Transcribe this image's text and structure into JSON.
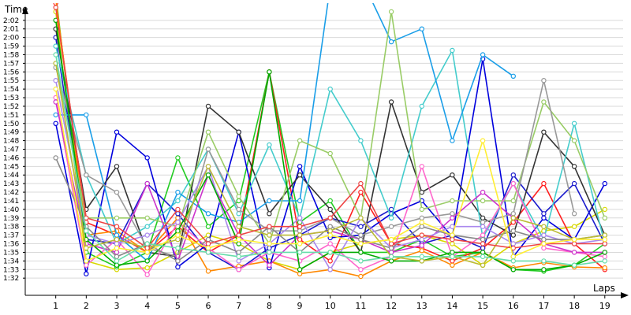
{
  "chart_data": {
    "type": "line",
    "xlabel": "Laps",
    "ylabel": "Time",
    "x": [
      1,
      2,
      3,
      4,
      5,
      6,
      7,
      8,
      9,
      10,
      11,
      12,
      13,
      14,
      15,
      16,
      17,
      18,
      19
    ],
    "x_tick_labels": [
      "1",
      "2",
      "3",
      "4",
      "5",
      "6",
      "7",
      "8",
      "9",
      "10",
      "11",
      "12",
      "13",
      "14",
      "15",
      "16",
      "17",
      "18",
      "19"
    ],
    "y_ticks": [
      92,
      93,
      94,
      95,
      96,
      97,
      98,
      99,
      100,
      101,
      102,
      103,
      104,
      105,
      106,
      107,
      108,
      109,
      110,
      111,
      112,
      113,
      114,
      115,
      116,
      117,
      118,
      119,
      120,
      121,
      122
    ],
    "y_tick_labels": [
      "1:32",
      "1:33",
      "1:34",
      "1:35",
      "1:36",
      "1:37",
      "1:38",
      "1:39",
      "1:40",
      "1:41",
      "1:42",
      "1:43",
      "1:44",
      "1:45",
      "1:46",
      "1:47",
      "1:48",
      "1:49",
      "1:50",
      "1:51",
      "1:52",
      "1:53",
      "1:54",
      "1:55",
      "1:56",
      "1:57",
      "1:58",
      "1:59",
      "2:00",
      "2:01",
      "2:02"
    ],
    "ylim": [
      90,
      124
    ],
    "xlim": [
      0,
      19.6
    ],
    "y_unit": "seconds",
    "grid": "horizontal",
    "series": [
      {
        "color": "#d8d800",
        "values": [
          123,
          94,
          93,
          93.2,
          95,
          97,
          96,
          94,
          93,
          95,
          96,
          96.5,
          97,
          96,
          93.5,
          96,
          97.5,
          98,
          100
        ]
      },
      {
        "color": "#22cc22",
        "values": [
          125,
          95,
          93.3,
          95,
          106,
          98,
          101,
          116,
          98.5,
          101,
          95,
          95,
          96.5,
          94.5,
          95,
          93,
          92.8,
          93.5,
          96
        ]
      },
      {
        "color": "#ff2020",
        "values": [
          124,
          98.5,
          97,
          95,
          98,
          95,
          97,
          116,
          96.5,
          94,
          102,
          96,
          95.5,
          94,
          95.5,
          98.5,
          103,
          96,
          93
        ]
      },
      {
        "color": "#ff8800",
        "values": [
          124.5,
          97,
          97.5,
          95,
          99,
          92.8,
          93.4,
          94,
          92.5,
          93,
          92.2,
          94,
          95.2,
          93.5,
          95,
          93.2,
          93.8,
          93.3,
          93.2
        ]
      },
      {
        "color": "#0000dd",
        "values": [
          110,
          92.5,
          109,
          106,
          93.3,
          96,
          109,
          93.2,
          105,
          96.7,
          97,
          99.5,
          101,
          96.8,
          117.5,
          94.5,
          99,
          96.5,
          103
        ]
      },
      {
        "color": "#1a1acc",
        "values": [
          120,
          96.5,
          96,
          103,
          99.5,
          95,
          93,
          95.5,
          97,
          99,
          98,
          100,
          96,
          97,
          95.5,
          104,
          99.5,
          103,
          96
        ]
      },
      {
        "color": "#333333",
        "values": [
          121,
          100,
          105,
          95,
          94.5,
          112,
          109,
          99.5,
          104,
          100,
          95,
          112.5,
          102,
          104,
          99,
          97,
          109,
          105,
          97
        ]
      },
      {
        "color": "#44cccc",
        "values": [
          119,
          104,
          96,
          98,
          101,
          107,
          99.5,
          107.5,
          99,
          114,
          108,
          99,
          112,
          118.5,
          96.7,
          103,
          96.5,
          110,
          96
        ]
      },
      {
        "color": "#1a9ee8",
        "values": [
          111,
          111,
          97,
          94,
          102,
          99.5,
          98.5,
          101,
          101,
          126,
          127,
          119.5,
          121,
          108,
          118,
          115.5,
          null,
          null,
          null
        ]
      },
      {
        "color": "#99cc66",
        "values": [
          117,
          99,
          99,
          99,
          98,
          109,
          101.5,
          96,
          108,
          106.5,
          99,
          123,
          100,
          101,
          101,
          101,
          112.5,
          108,
          99
        ]
      },
      {
        "color": "#999999",
        "values": [
          116.5,
          104,
          102,
          95.5,
          94.5,
          107,
          100,
          97.5,
          97.5,
          99,
          97,
          98,
          99,
          99.5,
          98.5,
          99.5,
          115,
          99.5,
          null
        ]
      },
      {
        "color": "#ff66cc",
        "values": [
          113,
          93.5,
          96.5,
          92.4,
          98.5,
          95.5,
          93,
          95,
          94,
          96,
          93,
          94.5,
          105,
          94.5,
          97,
          103,
          95.5,
          95,
          94.5
        ]
      },
      {
        "color": "#cc33cc",
        "values": [
          112.5,
          96,
          95,
          103,
          94,
          104,
          97,
          93.5,
          97,
          97.5,
          96.5,
          95,
          95.8,
          99,
          102,
          99,
          96,
          95,
          95
        ]
      },
      {
        "color": "#aa88ee",
        "values": [
          115,
          97,
          96,
          97,
          98.5,
          105,
          94,
          96,
          99,
          93,
          99,
          95.5,
          96.5,
          98,
          98,
          96,
          97,
          96,
          96.5
        ]
      },
      {
        "color": "#00aa00",
        "values": [
          122,
          96.5,
          93.5,
          94,
          97.5,
          104,
          96,
          116,
          93,
          95,
          95,
          94,
          94,
          95,
          95,
          93,
          93,
          93.5,
          95
        ]
      },
      {
        "color": "#888888",
        "values": [
          106,
          98,
          94.5,
          96,
          94,
          96.5,
          95,
          98,
          95,
          98,
          96.5,
          95.5,
          98,
          97,
          96.5,
          97.5,
          96.5,
          96.5,
          97
        ]
      },
      {
        "color": "#bbbb33",
        "values": [
          117,
          95.5,
          96.5,
          95.5,
          96.5,
          105,
          98,
          97,
          97,
          97.5,
          99,
          94.5,
          94,
          94.5,
          93.5,
          99,
          98,
          96.5,
          97
        ]
      },
      {
        "color": "#ee4444",
        "values": [
          123.5,
          99,
          98,
          95.5,
          100,
          96,
          97,
          98,
          98,
          99,
          103,
          96,
          97,
          96.5,
          96,
          95.5,
          96,
          96,
          96
        ]
      },
      {
        "color": "#ffee33",
        "values": [
          114,
          94,
          95.5,
          95,
          97,
          95.5,
          96.5,
          96,
          96,
          97,
          96,
          96.5,
          98.5,
          97,
          108,
          94.5,
          96,
          96.5,
          96.5
        ]
      },
      {
        "color": "#66ddaa",
        "values": [
          118,
          97.5,
          94,
          96,
          95.5,
          95,
          94.5,
          95,
          95,
          95,
          94,
          94.5,
          94.5,
          94.5,
          94.5,
          94,
          94,
          93.5,
          94
        ]
      }
    ]
  }
}
